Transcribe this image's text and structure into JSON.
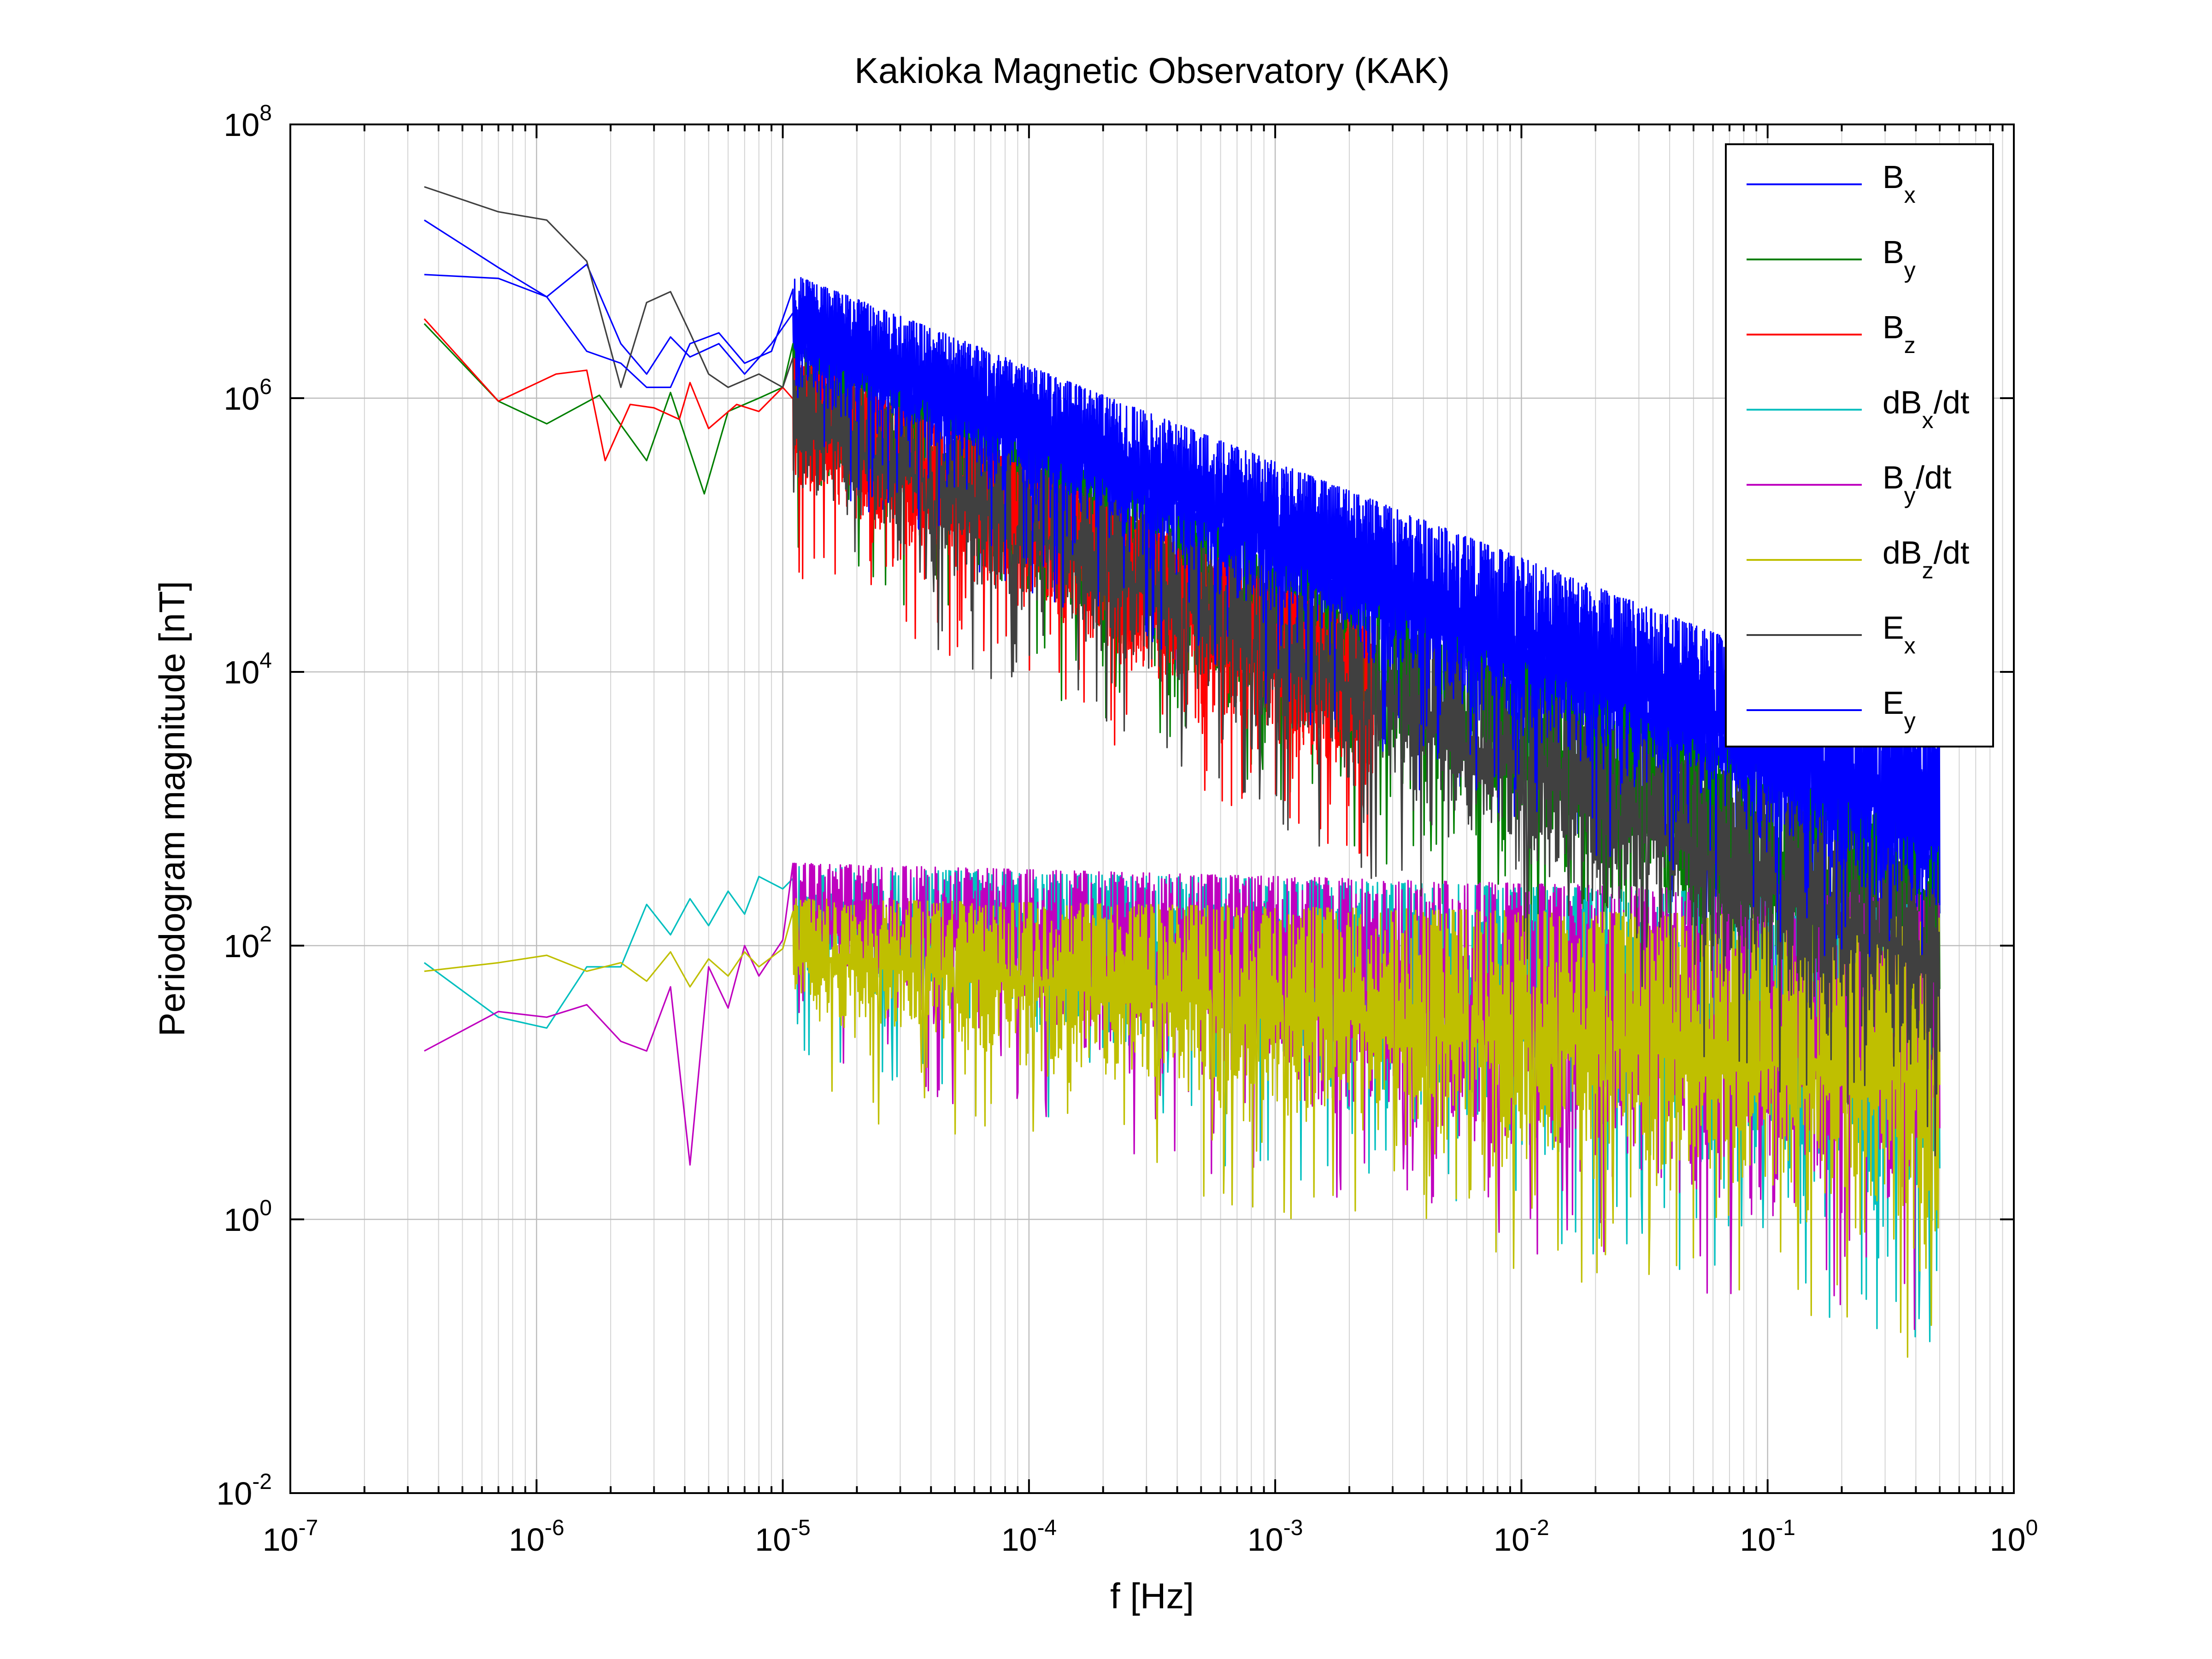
{
  "chart_data": {
    "type": "line",
    "title": "Kakioka Magnetic Observatory (KAK)",
    "xlabel": "f [Hz]",
    "ylabel": "Periodogram magnitude [nT]",
    "xscale": "log",
    "yscale": "log",
    "xlim": [
      1e-07,
      1
    ],
    "ylim": [
      0.01,
      100000000
    ],
    "grid": true,
    "legend_position": "top-right",
    "x_ticks": [
      {
        "value": 1e-07,
        "base": "10",
        "exp": "-7"
      },
      {
        "value": 1e-06,
        "base": "10",
        "exp": "-6"
      },
      {
        "value": 1e-05,
        "base": "10",
        "exp": "-5"
      },
      {
        "value": 0.0001,
        "base": "10",
        "exp": "-4"
      },
      {
        "value": 0.001,
        "base": "10",
        "exp": "-3"
      },
      {
        "value": 0.01,
        "base": "10",
        "exp": "-2"
      },
      {
        "value": 0.1,
        "base": "10",
        "exp": "-1"
      },
      {
        "value": 1,
        "base": "10",
        "exp": "0"
      }
    ],
    "y_ticks": [
      {
        "value": 0.01,
        "base": "10",
        "exp": "-2"
      },
      {
        "value": 1,
        "base": "10",
        "exp": "0"
      },
      {
        "value": 100,
        "base": "10",
        "exp": "2"
      },
      {
        "value": 10000,
        "base": "10",
        "exp": "4"
      },
      {
        "value": 1000000,
        "base": "10",
        "exp": "6"
      },
      {
        "value": 100000000,
        "base": "10",
        "exp": "8"
      }
    ],
    "series": [
      {
        "name": "Bx",
        "label_main": "B",
        "label_sub": "x",
        "label_tail": "",
        "color": "#0000ff",
        "low_points": [
          [
            3.5e-07,
            8000000.0
          ],
          [
            7e-07,
            7500000.0
          ],
          [
            1.1e-06,
            5500000.0
          ],
          [
            1.6e-06,
            9500000.0
          ],
          [
            2.2e-06,
            2500000.0
          ],
          [
            2.8e-06,
            1500000.0
          ],
          [
            3.5e-06,
            2800000.0
          ],
          [
            4.2e-06,
            2000000.0
          ],
          [
            5.5e-06,
            2500000.0
          ],
          [
            7e-06,
            1500000.0
          ],
          [
            9e-06,
            2500000.0
          ]
        ],
        "envelope": {
          "start": 1.1e-05,
          "end": 0.5,
          "top_start": 6000000.0,
          "top_slope": -0.72,
          "bottom_start": 800000.0,
          "bottom_slope": -0.88,
          "bottom_floor": 3
        }
      },
      {
        "name": "By",
        "label_main": "B",
        "label_sub": "y",
        "label_tail": "",
        "color": "#007f00",
        "low_points": [
          [
            3.5e-07,
            3500000.0
          ],
          [
            7e-07,
            950000.0
          ],
          [
            1.1e-06,
            650000.0
          ],
          [
            1.8e-06,
            1050000.0
          ],
          [
            2.8e-06,
            350000.0
          ],
          [
            3.5e-06,
            1100000.0
          ],
          [
            4.8e-06,
            200000.0
          ],
          [
            6e-06,
            800000.0
          ],
          [
            8e-06,
            1000000.0
          ],
          [
            1e-05,
            1200000.0
          ]
        ],
        "envelope": {
          "start": 1.1e-05,
          "end": 0.5,
          "top_start": 2500000.0,
          "top_slope": -0.78,
          "bottom_start": 250000.0,
          "bottom_slope": -0.95,
          "bottom_floor": 0.03
        }
      },
      {
        "name": "Bz",
        "label_main": "B",
        "label_sub": "z",
        "label_tail": "",
        "color": "#ff0000",
        "low_points": [
          [
            3.5e-07,
            3800000.0
          ],
          [
            7e-07,
            950000.0
          ],
          [
            1.2e-06,
            1500000.0
          ],
          [
            1.6e-06,
            1600000.0
          ],
          [
            1.9e-06,
            350000.0
          ],
          [
            2.4e-06,
            900000.0
          ],
          [
            3e-06,
            850000.0
          ],
          [
            3.8e-06,
            700000.0
          ],
          [
            4.2e-06,
            1300000.0
          ],
          [
            5e-06,
            600000.0
          ],
          [
            6.5e-06,
            900000.0
          ],
          [
            8e-06,
            800000.0
          ],
          [
            1e-05,
            1200000.0
          ]
        ],
        "envelope": {
          "start": 1.1e-05,
          "end": 0.0025,
          "top_start": 2000000.0,
          "top_slope": -0.85,
          "bottom_start": 200000.0,
          "bottom_slope": -0.95,
          "bottom_floor": 300
        }
      },
      {
        "name": "dBx/dt",
        "label_main": "dB",
        "label_sub": "x",
        "label_tail": "/dt",
        "color": "#00bfbf",
        "low_points": [
          [
            3.5e-07,
            75
          ],
          [
            7e-07,
            30
          ],
          [
            1.1e-06,
            25
          ],
          [
            1.6e-06,
            70
          ],
          [
            2.2e-06,
            70
          ],
          [
            2.8e-06,
            200
          ],
          [
            3.5e-06,
            120
          ],
          [
            4.2e-06,
            220
          ],
          [
            5e-06,
            140
          ],
          [
            6e-06,
            250
          ],
          [
            7e-06,
            170
          ],
          [
            8e-06,
            320
          ],
          [
            1e-05,
            260
          ]
        ],
        "envelope": {
          "start": 1.1e-05,
          "end": 0.5,
          "top_start": 380,
          "top_slope": -0.05,
          "bottom_start": 60,
          "bottom_slope": -0.45,
          "bottom_floor": 0.02
        }
      },
      {
        "name": "By/dt",
        "label_main": "B",
        "label_sub": "y",
        "label_tail": "/dt",
        "color": "#bf00bf",
        "low_points": [
          [
            3.5e-07,
            17
          ],
          [
            7e-07,
            33
          ],
          [
            1.1e-06,
            30
          ],
          [
            1.6e-06,
            37
          ],
          [
            2.2e-06,
            20
          ],
          [
            2.8e-06,
            17
          ],
          [
            3.5e-06,
            50
          ],
          [
            4.2e-06,
            2.5
          ],
          [
            5e-06,
            70
          ],
          [
            6e-06,
            35
          ],
          [
            7e-06,
            100
          ],
          [
            8e-06,
            60
          ],
          [
            1e-05,
            110
          ]
        ],
        "envelope": {
          "start": 1.1e-05,
          "end": 0.5,
          "top_start": 400,
          "top_slope": -0.05,
          "bottom_start": 50,
          "bottom_slope": -0.45,
          "bottom_floor": 0.03
        }
      },
      {
        "name": "dBz/dt",
        "label_main": "dB",
        "label_sub": "z",
        "label_tail": "/dt",
        "color": "#bfbf00",
        "low_points": [
          [
            3.5e-07,
            65
          ],
          [
            7e-07,
            75
          ],
          [
            1.1e-06,
            85
          ],
          [
            1.6e-06,
            65
          ],
          [
            2.2e-06,
            75
          ],
          [
            2.8e-06,
            55
          ],
          [
            3.5e-06,
            90
          ],
          [
            4.2e-06,
            50
          ],
          [
            5e-06,
            80
          ],
          [
            6e-06,
            60
          ],
          [
            7e-06,
            90
          ],
          [
            8e-06,
            70
          ],
          [
            1e-05,
            95
          ]
        ],
        "envelope": {
          "start": 1.1e-05,
          "end": 0.5,
          "top_start": 220,
          "top_slope": -0.03,
          "bottom_start": 25,
          "bottom_slope": -0.4,
          "bottom_floor": 0.2
        }
      },
      {
        "name": "Ex",
        "label_main": "E",
        "label_sub": "x",
        "label_tail": "",
        "color": "#404040",
        "low_points": [
          [
            3.5e-07,
            35000000.0
          ],
          [
            7e-07,
            23000000.0
          ],
          [
            1.1e-06,
            20000000.0
          ],
          [
            1.6e-06,
            10000000.0
          ],
          [
            2.2e-06,
            1200000.0
          ],
          [
            2.8e-06,
            5000000.0
          ],
          [
            3.5e-06,
            6000000.0
          ],
          [
            4.2e-06,
            3000000.0
          ],
          [
            5e-06,
            1500000.0
          ],
          [
            6e-06,
            1200000.0
          ],
          [
            8e-06,
            1500000.0
          ],
          [
            1e-05,
            1200000.0
          ]
        ],
        "envelope": {
          "start": 1.1e-05,
          "end": 0.5,
          "top_start": 2000000.0,
          "top_slope": -0.8,
          "bottom_start": 200000.0,
          "bottom_slope": -0.95,
          "bottom_floor": 0.5
        }
      },
      {
        "name": "Ey",
        "label_main": "E",
        "label_sub": "y",
        "label_tail": "",
        "color": "#0000ff",
        "low_points": [
          [
            3.5e-07,
            20000000.0
          ],
          [
            7e-07,
            9000000.0
          ],
          [
            1.1e-06,
            5500000.0
          ],
          [
            1.6e-06,
            2200000.0
          ],
          [
            2.2e-06,
            1800000.0
          ],
          [
            2.8e-06,
            1200000.0
          ],
          [
            3.5e-06,
            1200000.0
          ],
          [
            4.2e-06,
            2500000.0
          ],
          [
            5.5e-06,
            3000000.0
          ],
          [
            7e-06,
            1800000.0
          ],
          [
            9e-06,
            2200000.0
          ]
        ],
        "envelope": {
          "start": 1.1e-05,
          "end": 0.5,
          "top_start": 8000000.0,
          "top_slope": -0.7,
          "bottom_start": 1000000.0,
          "bottom_slope": -0.85,
          "bottom_floor": 5
        }
      }
    ]
  }
}
